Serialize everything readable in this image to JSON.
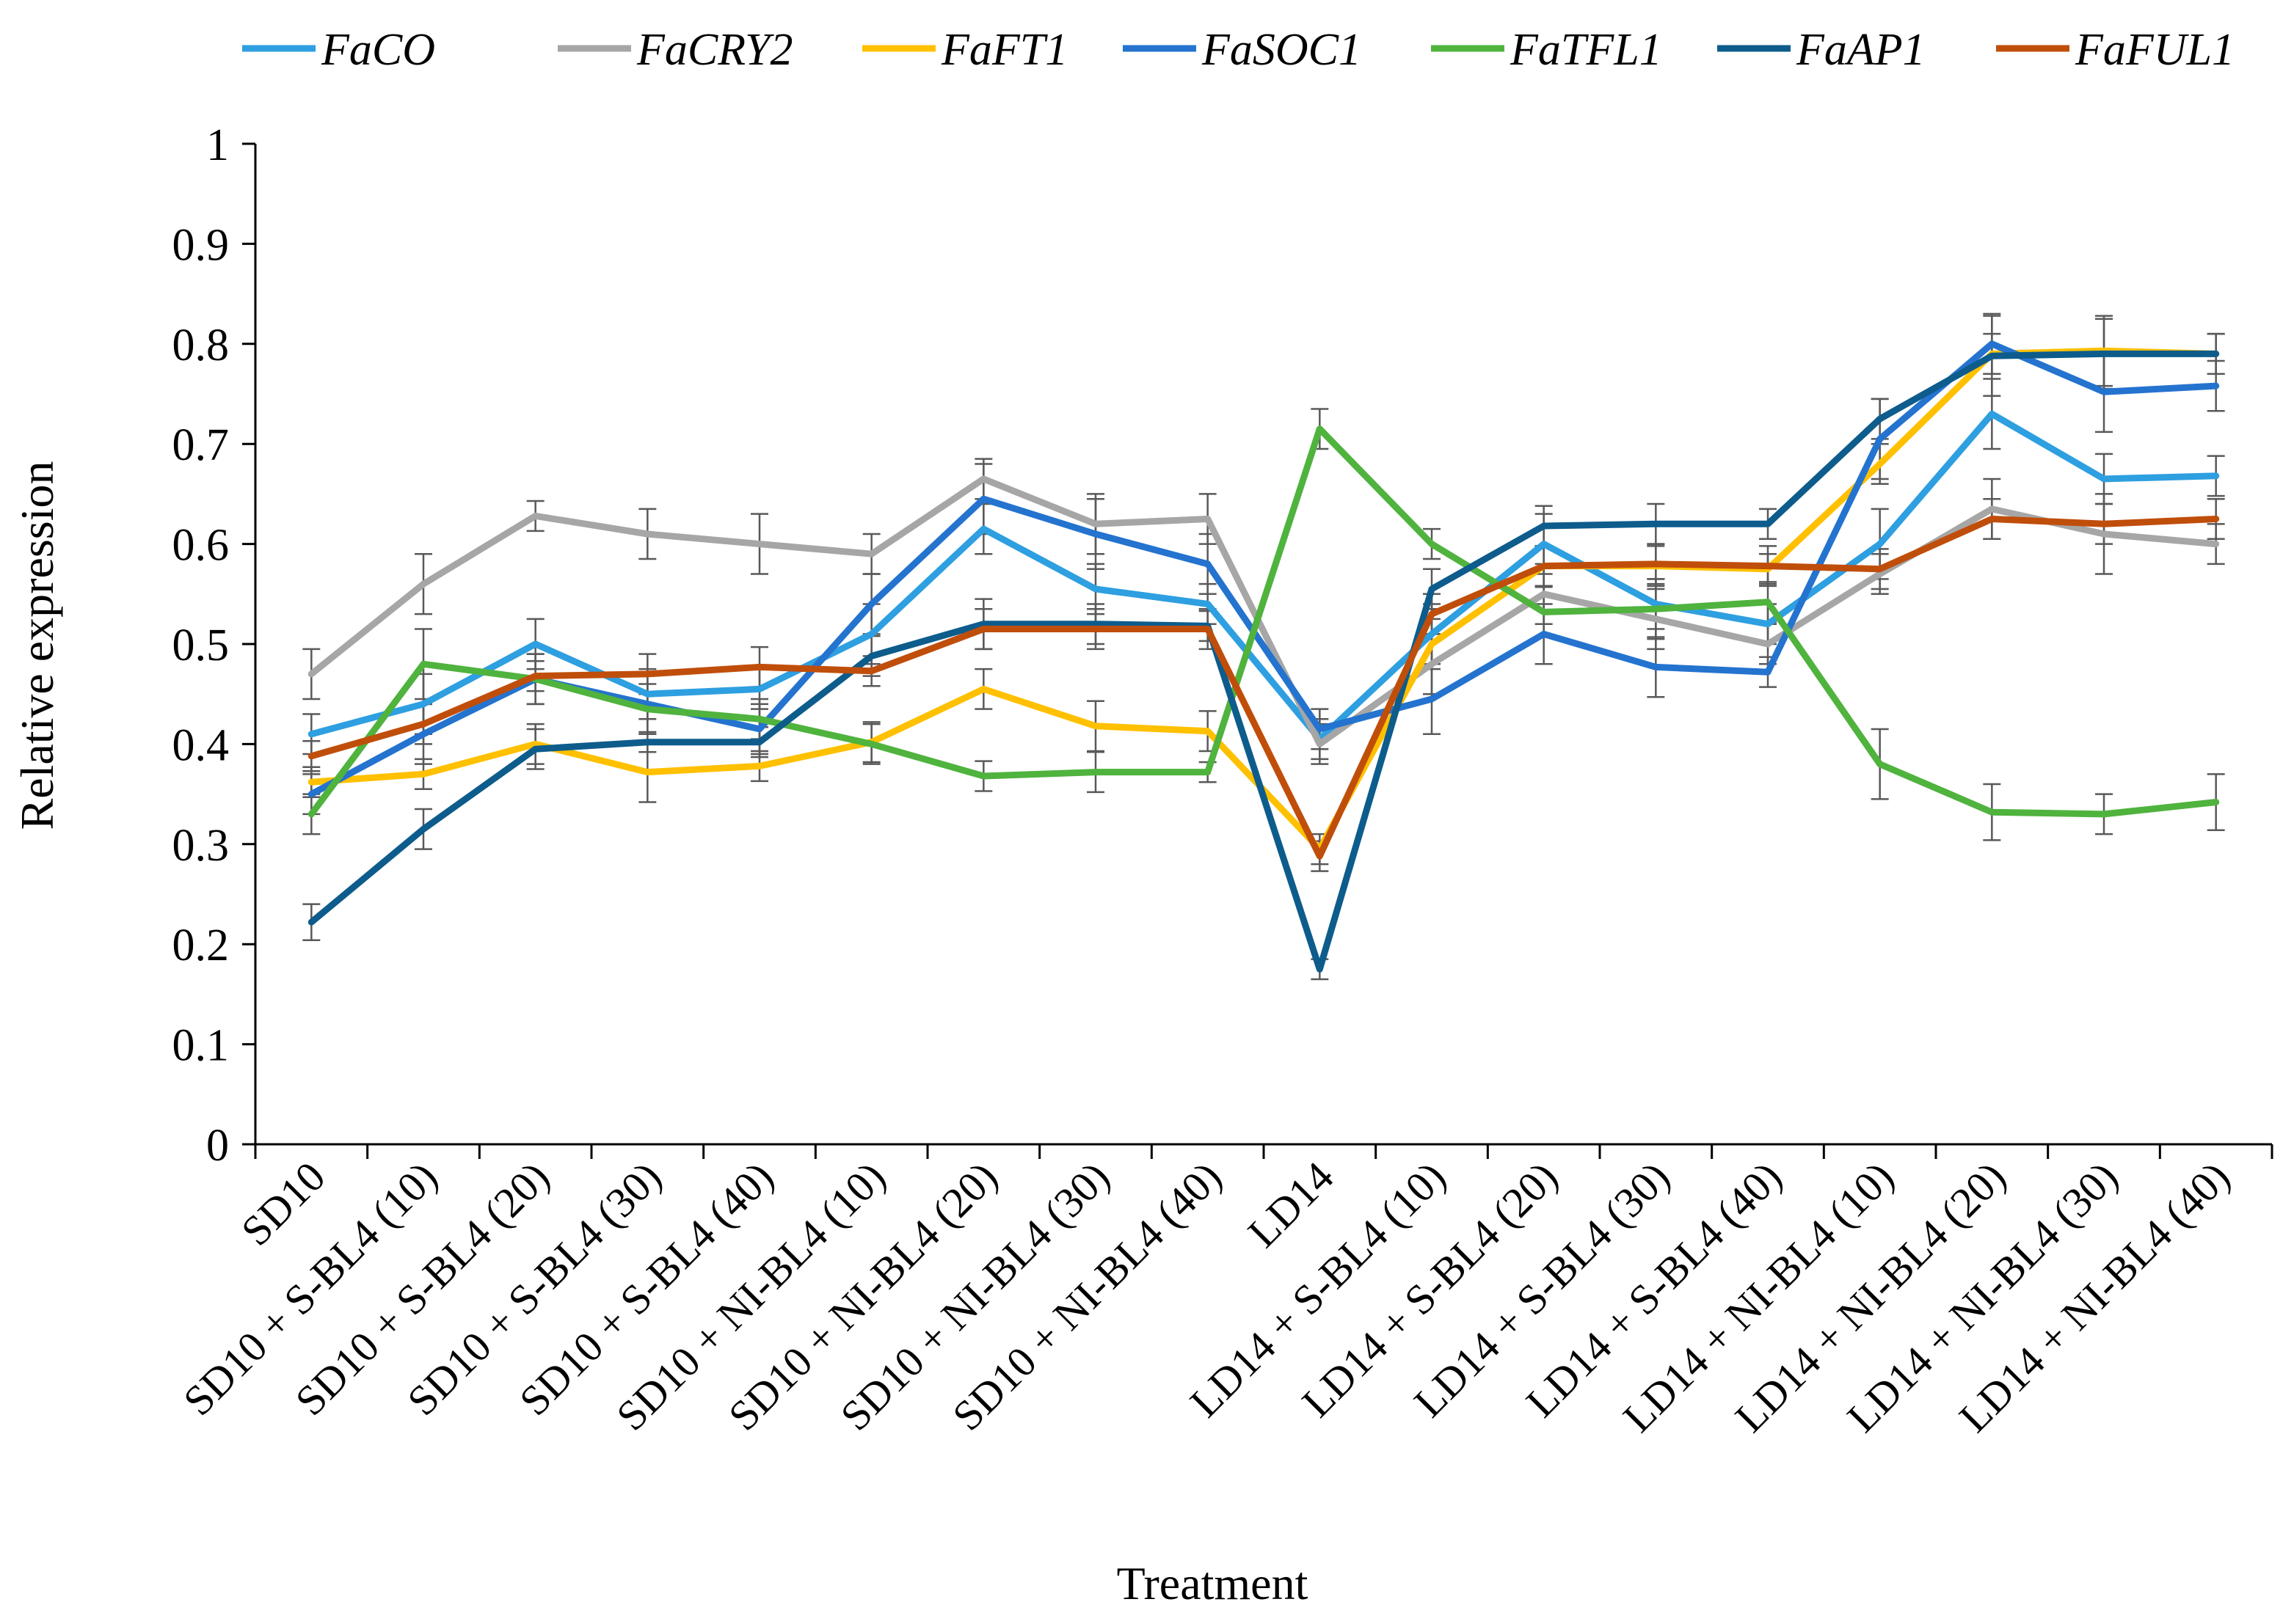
{
  "chart_data": {
    "type": "line",
    "title": "",
    "xlabel": "Treatment",
    "ylabel": "Relative expression",
    "ylim": [
      0,
      1
    ],
    "yticks": [
      0,
      0.1,
      0.2,
      0.3,
      0.4,
      0.5,
      0.6,
      0.7,
      0.8,
      0.9,
      1
    ],
    "ytick_labels": [
      "0",
      "0.1",
      "0.2",
      "0.3",
      "0.4",
      "0.5",
      "0.6",
      "0.7",
      "0.8",
      "0.9",
      "1"
    ],
    "grid": false,
    "legend_position": "top",
    "categories": [
      "SD10",
      "SD10 + S-BL4 (10)",
      "SD10 + S-BL4 (20)",
      "SD10 + S-BL4 (30)",
      "SD10 + S-BL4 (40)",
      "SD10 + NI-BL4 (10)",
      "SD10 + NI-BL4 (20)",
      "SD10 + NI-BL4 (30)",
      "SD10 + NI-BL4 (40)",
      "LD14",
      "LD14 + S-BL4 (10)",
      "LD14 + S-BL4 (20)",
      "LD14 + S-BL4 (30)",
      "LD14 + S-BL4 (40)",
      "LD14 + NI-BL4 (10)",
      "LD14 + NI-BL4 (20)",
      "LD14 + NI-BL4 (30)",
      "LD14 + NI-BL4 (40)"
    ],
    "series": [
      {
        "name": "FaCO",
        "color": "#2E9FE0",
        "values": [
          0.41,
          0.44,
          0.5,
          0.45,
          0.455,
          0.51,
          0.615,
          0.555,
          0.54,
          0.405,
          0.51,
          0.6,
          0.54,
          0.52,
          0.6,
          0.73,
          0.665,
          0.668
        ],
        "errors": [
          0.02,
          0.03,
          0.025,
          0.025,
          0.02,
          0.03,
          0.025,
          0.025,
          0.02,
          0.02,
          0.03,
          0.03,
          0.025,
          0.02,
          0.035,
          0.035,
          0.025,
          0.02
        ]
      },
      {
        "name": "FaCRY2",
        "color": "#A6A6A6",
        "values": [
          0.47,
          0.56,
          0.628,
          0.61,
          0.6,
          0.59,
          0.665,
          0.62,
          0.625,
          0.4,
          0.48,
          0.55,
          0.525,
          0.5,
          0.57,
          0.635,
          0.61,
          0.6
        ],
        "errors": [
          0.025,
          0.03,
          0.015,
          0.025,
          0.03,
          0.02,
          0.02,
          0.03,
          0.025,
          0.02,
          0.03,
          0.03,
          0.03,
          0.02,
          0.02,
          0.03,
          0.04,
          0.02
        ]
      },
      {
        "name": "FaFT1",
        "color": "#FFC000",
        "values": [
          0.362,
          0.37,
          0.4,
          0.372,
          0.378,
          0.402,
          0.455,
          0.418,
          0.413,
          0.295,
          0.5,
          0.578,
          0.578,
          0.575,
          0.68,
          0.79,
          0.793,
          0.79
        ],
        "errors": [
          0.015,
          0.015,
          0.02,
          0.03,
          0.015,
          0.02,
          0.02,
          0.025,
          0.02,
          0.015,
          0.025,
          0.02,
          0.02,
          0.015,
          0.02,
          0.02,
          0.035,
          0.02
        ]
      },
      {
        "name": "FaSOC1",
        "color": "#2473CF",
        "values": [
          0.35,
          0.41,
          0.465,
          0.44,
          0.415,
          0.54,
          0.645,
          0.61,
          0.58,
          0.415,
          0.445,
          0.51,
          0.477,
          0.472,
          0.705,
          0.8,
          0.752,
          0.758
        ],
        "errors": [
          0.02,
          0.03,
          0.025,
          0.03,
          0.025,
          0.03,
          0.035,
          0.035,
          0.03,
          0.02,
          0.035,
          0.03,
          0.03,
          0.015,
          0.04,
          0.03,
          0.04,
          0.025
        ]
      },
      {
        "name": "FaTFL1",
        "color": "#4FB33E",
        "values": [
          0.33,
          0.48,
          0.465,
          0.435,
          0.425,
          0.4,
          0.368,
          0.372,
          0.372,
          0.715,
          0.6,
          0.532,
          0.535,
          0.542,
          0.38,
          0.332,
          0.33,
          0.342
        ],
        "errors": [
          0.02,
          0.035,
          0.025,
          0.025,
          0.02,
          0.02,
          0.015,
          0.02,
          0.01,
          0.02,
          0.015,
          0.025,
          0.03,
          0.02,
          0.035,
          0.028,
          0.02,
          0.028
        ]
      },
      {
        "name": "FaAP1",
        "color": "#0D5C8C",
        "values": [
          0.222,
          0.315,
          0.395,
          0.402,
          0.402,
          0.488,
          0.52,
          0.52,
          0.518,
          0.175,
          0.555,
          0.618,
          0.62,
          0.62,
          0.725,
          0.788,
          0.79,
          0.79
        ],
        "errors": [
          0.018,
          0.02,
          0.02,
          0.01,
          0.015,
          0.02,
          0.025,
          0.02,
          0.015,
          0.01,
          0.02,
          0.02,
          0.02,
          0.015,
          0.02,
          0.04,
          0.035,
          0.02
        ]
      },
      {
        "name": "FaFUL1",
        "color": "#C04E0B",
        "values": [
          0.388,
          0.42,
          0.468,
          0.47,
          0.477,
          0.473,
          0.515,
          0.515,
          0.515,
          0.288,
          0.53,
          0.578,
          0.58,
          0.578,
          0.575,
          0.625,
          0.62,
          0.625
        ],
        "errors": [
          0.015,
          0.02,
          0.015,
          0.02,
          0.02,
          0.015,
          0.02,
          0.02,
          0.02,
          0.015,
          0.02,
          0.02,
          0.02,
          0.02,
          0.02,
          0.02,
          0.02,
          0.02
        ]
      }
    ]
  }
}
